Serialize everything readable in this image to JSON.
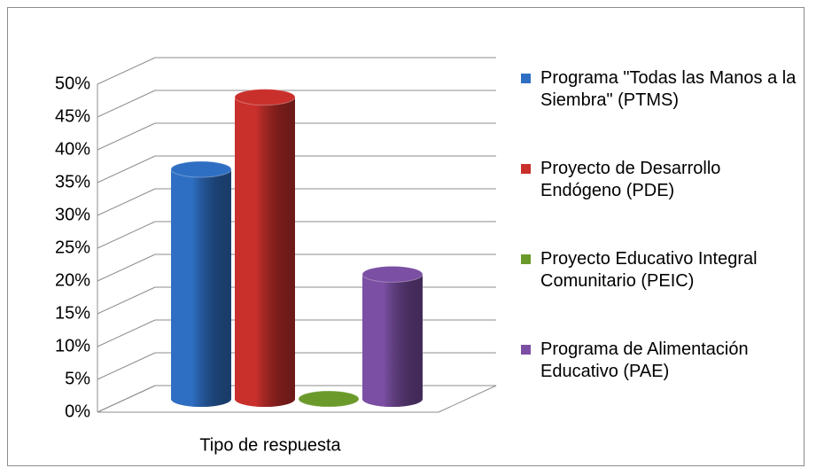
{
  "chart_data": {
    "type": "bar3d",
    "categories": [
      "Tipo de respuesta"
    ],
    "series": [
      {
        "name": "Programa \"Todas las Manos a la Siembra\" (PTMS)",
        "color": "#2f6fc3",
        "values": [
          35
        ]
      },
      {
        "name": "Proyecto de Desarrollo Endógeno (PDE)",
        "color": "#c9302c",
        "values": [
          46
        ]
      },
      {
        "name": "Proyecto Educativo Integral Comunitario (PEIC)",
        "color": "#6b9a2b",
        "values": [
          0
        ]
      },
      {
        "name": "Programa de Alimentación Educativo (PAE)",
        "color": "#7b4fa3",
        "values": [
          19
        ]
      }
    ],
    "ylim": [
      0,
      50
    ],
    "yticks": [
      {
        "value": 0,
        "label": "0%"
      },
      {
        "value": 5,
        "label": "5%"
      },
      {
        "value": 10,
        "label": "10%"
      },
      {
        "value": 15,
        "label": "15%"
      },
      {
        "value": 20,
        "label": "20%"
      },
      {
        "value": 25,
        "label": "25%"
      },
      {
        "value": 30,
        "label": "30%"
      },
      {
        "value": 35,
        "label": "35%"
      },
      {
        "value": 40,
        "label": "40%"
      },
      {
        "value": 45,
        "label": "45%"
      },
      {
        "value": 50,
        "label": "50%"
      }
    ],
    "grid": true,
    "legend": "right"
  }
}
